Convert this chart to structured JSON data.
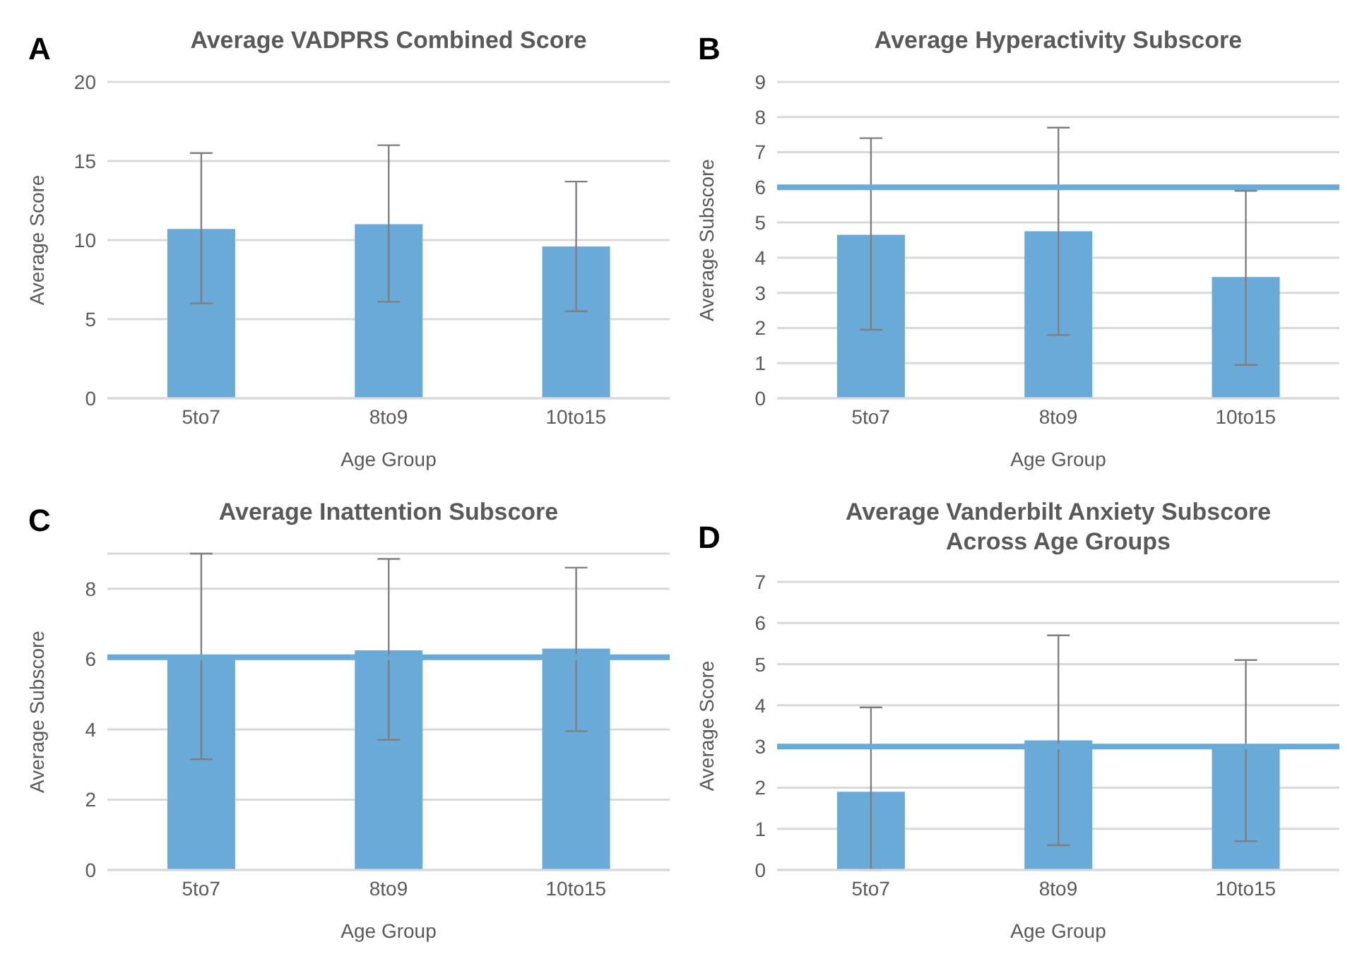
{
  "chart_data": [
    {
      "type": "bar",
      "title": "Average VADPRS Combined Score",
      "xlabel": "Age Group",
      "ylabel": "Average Score",
      "annotations": [
        "A"
      ],
      "categories": [
        "5to7",
        "8to9",
        "10to15"
      ],
      "color": "#6aaad8",
      "values": [
        10.7,
        11.0,
        9.6
      ],
      "errors": [
        [
          6.0,
          15.5
        ],
        [
          6.1,
          16.0
        ],
        [
          5.5,
          13.7
        ]
      ],
      "ylim": [
        0,
        20
      ],
      "yticks": [
        0,
        5,
        10,
        15,
        20
      ],
      "grid": "y"
    },
    {
      "type": "bar",
      "title": "Average Hyperactivity Subscore",
      "xlabel": "Age Group",
      "ylabel": "Average Subscore",
      "annotations": [
        "B"
      ],
      "categories": [
        "5to7",
        "8to9",
        "10to15"
      ],
      "color": "#6aaad8",
      "values": [
        4.65,
        4.75,
        3.45
      ],
      "errors": [
        [
          1.95,
          7.4
        ],
        [
          1.8,
          7.7
        ],
        [
          0.95,
          5.9
        ]
      ],
      "ylim": [
        0,
        9
      ],
      "yticks": [
        0,
        1,
        2,
        3,
        4,
        5,
        6,
        7,
        8,
        9
      ],
      "grid": "y",
      "ref_lines": [
        {
          "axis": "y",
          "value": 6,
          "color": "#6aaad8"
        }
      ]
    },
    {
      "type": "bar",
      "title": "Average Inattention Subscore",
      "xlabel": "Age Group",
      "ylabel": "Average Subscore",
      "annotations": [
        "C"
      ],
      "categories": [
        "5to7",
        "8to9",
        "10to15"
      ],
      "color": "#6aaad8",
      "values": [
        6.1,
        6.25,
        6.3
      ],
      "errors": [
        [
          3.15,
          9.0
        ],
        [
          3.7,
          8.85
        ],
        [
          3.95,
          8.6
        ]
      ],
      "ylim": [
        0,
        9
      ],
      "yticks": [
        0,
        2,
        4,
        6,
        8
      ],
      "grid": "y",
      "ref_lines": [
        {
          "axis": "y",
          "value": 6.05,
          "color": "#6aaad8"
        }
      ]
    },
    {
      "type": "bar",
      "title": "Average Vanderbilt Anxiety Subscore\nAcross Age Groups",
      "xlabel": "Age Group",
      "ylabel": "Average Score",
      "annotations": [
        "D"
      ],
      "categories": [
        "5to7",
        "8to9",
        "10to15"
      ],
      "color": "#6aaad8",
      "values": [
        1.9,
        3.15,
        3.0
      ],
      "errors": [
        [
          0,
          3.95
        ],
        [
          0.6,
          5.7
        ],
        [
          0.7,
          5.1
        ]
      ],
      "ylim": [
        0,
        7
      ],
      "yticks": [
        0,
        1,
        2,
        3,
        4,
        5,
        6,
        7
      ],
      "grid": "y",
      "ref_lines": [
        {
          "axis": "y",
          "value": 3,
          "color": "#6aaad8"
        }
      ]
    }
  ]
}
